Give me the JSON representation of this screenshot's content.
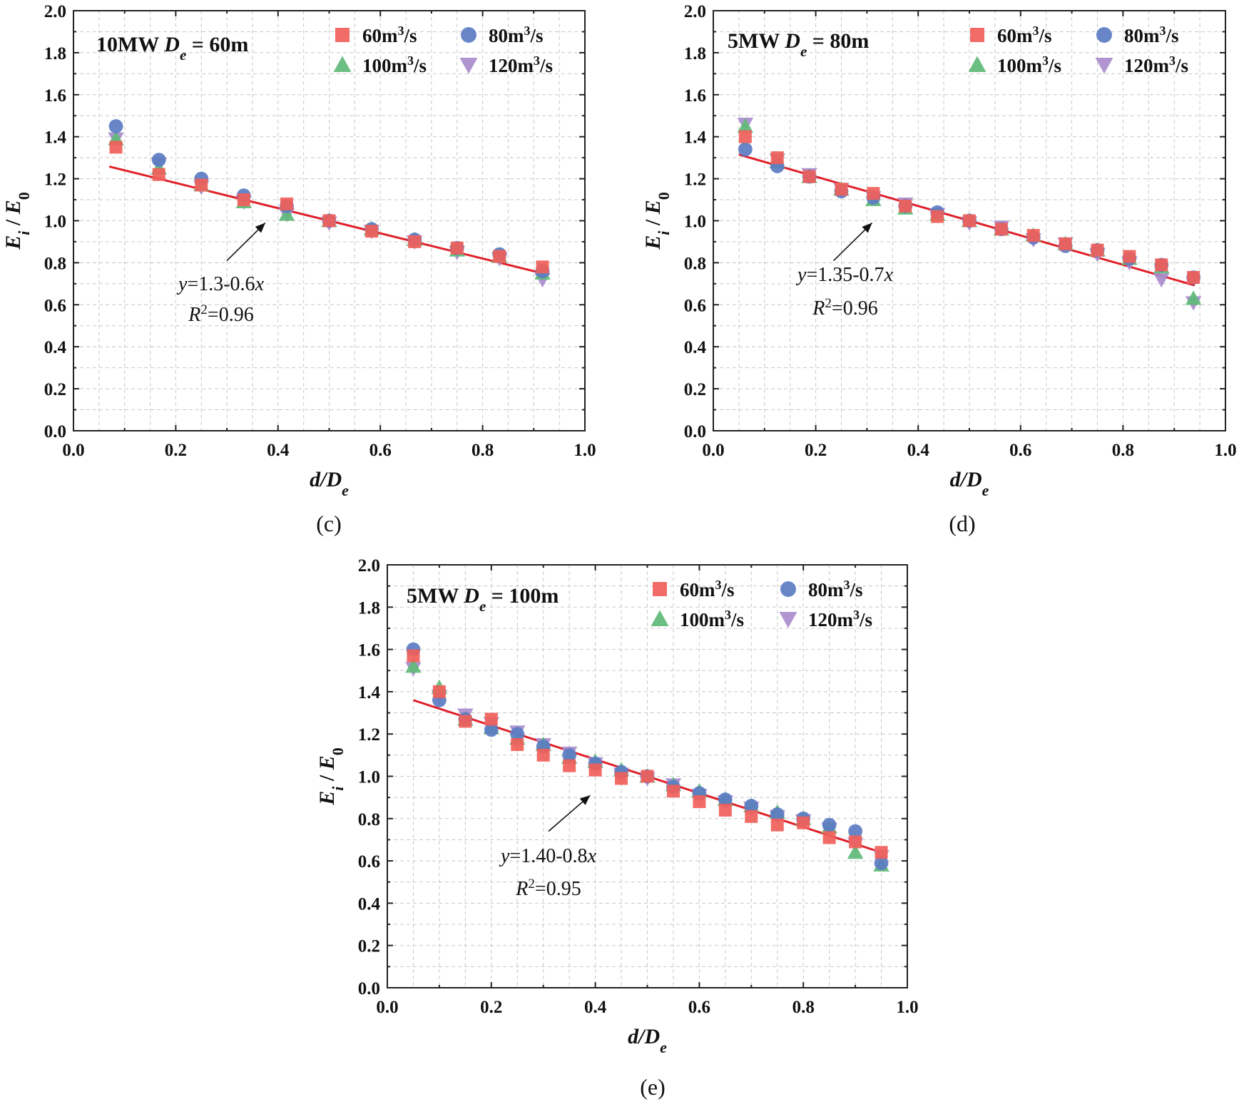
{
  "colors": {
    "60": "#f0605a",
    "80": "#5b7cc2",
    "100": "#5fba78",
    "120": "#a98ccc",
    "fit": "#e0202a",
    "axis": "#222222",
    "grid": "#c8c8c8"
  },
  "chart_data": [
    {
      "type": "scatter",
      "panel": "c",
      "caption": "(c)",
      "title": "10MW D_e = 60m",
      "title_parts": {
        "prefix": "10MW ",
        "var": "D",
        "sub": "e",
        "suffix": " = 60m"
      },
      "xlabel": "d/D_e",
      "xlabel_parts": {
        "main": "d/D",
        "sub": "e"
      },
      "ylabel": "E_i / E_0",
      "ylabel_parts": {
        "a": "E",
        "a_sub": "i",
        "mid": " / ",
        "b": "E",
        "b_sub": "0"
      },
      "xlim": [
        0,
        1.0
      ],
      "ylim": [
        0,
        2.0
      ],
      "xticks": [
        "0.0",
        "0.2",
        "0.4",
        "0.6",
        "0.8",
        "1.0"
      ],
      "yticks": [
        "0.0",
        "0.2",
        "0.4",
        "0.6",
        "0.8",
        "1.0",
        "1.2",
        "1.4",
        "1.6",
        "1.8",
        "2.0"
      ],
      "legend": [
        {
          "key": "60",
          "label": "60m³/s",
          "marker": "square"
        },
        {
          "key": "80",
          "label": "80m³/s",
          "marker": "circle"
        },
        {
          "key": "100",
          "label": "100m³/s",
          "marker": "triangle-up"
        },
        {
          "key": "120",
          "label": "120m³/s",
          "marker": "triangle-down"
        }
      ],
      "x": [
        0.083,
        0.167,
        0.25,
        0.333,
        0.417,
        0.5,
        0.583,
        0.667,
        0.75,
        0.833,
        0.917
      ],
      "series": [
        {
          "key": "60",
          "name": "60m³/s",
          "values": [
            1.35,
            1.22,
            1.17,
            1.1,
            1.08,
            1.0,
            0.95,
            0.9,
            0.87,
            0.83,
            0.78
          ]
        },
        {
          "key": "80",
          "name": "80m³/s",
          "values": [
            1.45,
            1.29,
            1.2,
            1.12,
            1.07,
            1.0,
            0.96,
            0.91,
            0.87,
            0.84,
            0.76
          ]
        },
        {
          "key": "100",
          "name": "100m³/s",
          "values": [
            1.39,
            1.25,
            1.17,
            1.09,
            1.03,
            1.0,
            0.96,
            0.91,
            0.86,
            0.83,
            0.75
          ]
        },
        {
          "key": "120",
          "name": "120m³/s",
          "values": [
            1.39,
            1.27,
            1.16,
            1.09,
            1.03,
            0.99,
            0.95,
            0.9,
            0.85,
            0.82,
            0.72
          ]
        }
      ],
      "fit": {
        "intercept": 1.3,
        "slope": -0.6,
        "x_range": [
          0.07,
          0.92
        ],
        "equation": "y=1.3-0.6x",
        "eq_parts": {
          "y": "y",
          "body": "=1.3-0.6",
          "x": "x"
        },
        "r2": "R²=0.96",
        "r2_parts": {
          "r": "R",
          "sup": "2",
          "val": "=0.96"
        }
      },
      "annotation_arrow": {
        "from": [
          0.3,
          0.81
        ],
        "to": [
          0.375,
          0.99
        ]
      }
    },
    {
      "type": "scatter",
      "panel": "d",
      "caption": "(d)",
      "title": "5MW D_e = 80m",
      "title_parts": {
        "prefix": "5MW ",
        "var": "D",
        "sub": "e",
        "suffix": " = 80m"
      },
      "xlabel": "d/D_e",
      "xlabel_parts": {
        "main": "d/D",
        "sub": "e"
      },
      "ylabel": "E_i / E_0",
      "ylabel_parts": {
        "a": "E",
        "a_sub": "i",
        "mid": " / ",
        "b": "E",
        "b_sub": "0"
      },
      "xlim": [
        0,
        1.0
      ],
      "ylim": [
        0,
        2.0
      ],
      "xticks": [
        "0.0",
        "0.2",
        "0.4",
        "0.6",
        "0.8",
        "1.0"
      ],
      "yticks": [
        "0.0",
        "0.2",
        "0.4",
        "0.6",
        "0.8",
        "1.0",
        "1.2",
        "1.4",
        "1.6",
        "1.8",
        "2.0"
      ],
      "legend": [
        {
          "key": "60",
          "label": "60m³/s",
          "marker": "square"
        },
        {
          "key": "80",
          "label": "80m³/s",
          "marker": "circle"
        },
        {
          "key": "100",
          "label": "100m³/s",
          "marker": "triangle-up"
        },
        {
          "key": "120",
          "label": "120m³/s",
          "marker": "triangle-down"
        }
      ],
      "x": [
        0.0625,
        0.125,
        0.1875,
        0.25,
        0.3125,
        0.375,
        0.4375,
        0.5,
        0.5625,
        0.625,
        0.6875,
        0.75,
        0.8125,
        0.875,
        0.9375
      ],
      "series": [
        {
          "key": "60",
          "name": "60m³/s",
          "values": [
            1.4,
            1.3,
            1.21,
            1.15,
            1.13,
            1.07,
            1.02,
            1.0,
            0.96,
            0.93,
            0.89,
            0.86,
            0.83,
            0.79,
            0.73
          ]
        },
        {
          "key": "80",
          "name": "80m³/s",
          "values": [
            1.34,
            1.26,
            1.21,
            1.14,
            1.11,
            1.07,
            1.04,
            1.0,
            0.96,
            0.92,
            0.88,
            0.86,
            0.82,
            0.79,
            0.73
          ]
        },
        {
          "key": "100",
          "name": "100m³/s",
          "values": [
            1.45,
            1.28,
            1.21,
            1.15,
            1.1,
            1.06,
            1.03,
            1.0,
            0.96,
            0.93,
            0.89,
            0.86,
            0.82,
            0.78,
            0.63
          ]
        },
        {
          "key": "120",
          "name": "120m³/s",
          "values": [
            1.46,
            1.29,
            1.22,
            1.15,
            1.11,
            1.08,
            1.03,
            0.99,
            0.97,
            0.91,
            0.89,
            0.84,
            0.8,
            0.72,
            0.61
          ]
        }
      ],
      "fit": {
        "intercept": 1.35,
        "slope": -0.7,
        "x_range": [
          0.05,
          0.94
        ],
        "equation": "y=1.35-0.7x",
        "eq_parts": {
          "y": "y",
          "body": "=1.35-0.7",
          "x": "x"
        },
        "r2": "R²=0.96",
        "r2_parts": {
          "r": "R",
          "sup": "2",
          "val": "=0.96"
        }
      },
      "annotation_arrow": {
        "from": [
          0.235,
          0.81
        ],
        "to": [
          0.31,
          0.99
        ]
      }
    },
    {
      "type": "scatter",
      "panel": "e",
      "caption": "(e)",
      "title": "5MW D_e = 100m",
      "title_parts": {
        "prefix": "5MW ",
        "var": "D",
        "sub": "e",
        "suffix": " = 100m"
      },
      "xlabel": "d/D_e",
      "xlabel_parts": {
        "main": "d/D",
        "sub": "e"
      },
      "ylabel": "E_i / E_0",
      "ylabel_parts": {
        "a": "E",
        "a_sub": "i",
        "mid": " / ",
        "b": "E",
        "b_sub": "0"
      },
      "xlim": [
        0,
        1.0
      ],
      "ylim": [
        0,
        2.0
      ],
      "xticks": [
        "0.0",
        "0.2",
        "0.4",
        "0.6",
        "0.8",
        "1.0"
      ],
      "yticks": [
        "0.0",
        "0.2",
        "0.4",
        "0.6",
        "0.8",
        "1.0",
        "1.2",
        "1.4",
        "1.6",
        "1.8",
        "2.0"
      ],
      "legend": [
        {
          "key": "60",
          "label": "60m³/s",
          "marker": "square"
        },
        {
          "key": "80",
          "label": "80m³/s",
          "marker": "circle"
        },
        {
          "key": "100",
          "label": "100m³/s",
          "marker": "triangle-up"
        },
        {
          "key": "120",
          "label": "120m³/s",
          "marker": "triangle-down"
        }
      ],
      "x": [
        0.05,
        0.1,
        0.15,
        0.2,
        0.25,
        0.3,
        0.35,
        0.4,
        0.45,
        0.5,
        0.55,
        0.6,
        0.65,
        0.7,
        0.75,
        0.8,
        0.85,
        0.9,
        0.95
      ],
      "series": [
        {
          "key": "60",
          "name": "60m³/s",
          "values": [
            1.57,
            1.4,
            1.26,
            1.27,
            1.15,
            1.1,
            1.05,
            1.03,
            0.99,
            1.0,
            0.93,
            0.88,
            0.84,
            0.81,
            0.77,
            0.78,
            0.71,
            0.69,
            0.64
          ]
        },
        {
          "key": "80",
          "name": "80m³/s",
          "values": [
            1.6,
            1.36,
            1.27,
            1.22,
            1.2,
            1.14,
            1.1,
            1.06,
            1.02,
            1.0,
            0.95,
            0.92,
            0.89,
            0.86,
            0.82,
            0.8,
            0.77,
            0.74,
            0.59
          ]
        },
        {
          "key": "100",
          "name": "100m³/s",
          "values": [
            1.52,
            1.42,
            1.27,
            1.23,
            1.18,
            1.15,
            1.09,
            1.07,
            1.03,
            1.0,
            0.96,
            0.93,
            0.89,
            0.86,
            0.83,
            0.8,
            0.76,
            0.64,
            0.58
          ]
        },
        {
          "key": "120",
          "name": "120m³/s",
          "values": [
            1.51,
            1.38,
            1.29,
            1.25,
            1.21,
            1.15,
            1.11,
            1.06,
            1.01,
            0.99,
            0.96,
            0.91,
            0.88,
            0.85,
            0.81,
            0.79,
            0.75,
            0.68,
            0.62
          ]
        }
      ],
      "fit": {
        "intercept": 1.4,
        "slope": -0.8,
        "x_range": [
          0.05,
          0.95
        ],
        "equation": "y=1.40-0.8x",
        "eq_parts": {
          "y": "y",
          "body": "=1.40-0.8",
          "x": "x"
        },
        "r2": "R²=0.95",
        "r2_parts": {
          "r": "R",
          "sup": "2",
          "val": "=0.95"
        }
      },
      "annotation_arrow": {
        "from": [
          0.31,
          0.74
        ],
        "to": [
          0.39,
          0.91
        ]
      }
    }
  ]
}
